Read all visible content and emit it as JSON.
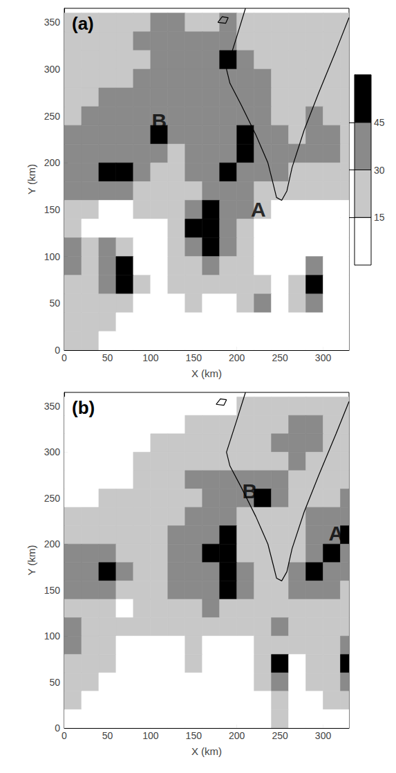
{
  "chart_data": [
    {
      "type": "heatmap",
      "panel_label": "(a)",
      "xlabel": "X (km)",
      "ylabel": "Y (km)",
      "xlim": [
        0,
        330
      ],
      "ylim": [
        0,
        365
      ],
      "xticks": [
        0,
        50,
        100,
        150,
        200,
        250,
        300
      ],
      "yticks": [
        0,
        50,
        100,
        150,
        200,
        250,
        300,
        350
      ],
      "cells": {
        "x": [
          0,
          20,
          40,
          60,
          80,
          100,
          120,
          140,
          160,
          180,
          200,
          220,
          240,
          260,
          280,
          300,
          320
        ],
        "y": [
          340,
          320,
          300,
          280,
          260,
          240,
          220,
          200,
          180,
          160,
          140,
          120,
          100,
          80,
          60,
          40,
          20,
          0
        ],
        "size": 20,
        "dbz": [
          [
            15,
            15,
            15,
            15,
            15,
            30,
            30,
            15,
            15,
            30,
            15,
            15,
            15,
            15,
            15,
            15,
            15
          ],
          [
            15,
            15,
            15,
            15,
            30,
            30,
            30,
            30,
            30,
            30,
            15,
            15,
            15,
            15,
            15,
            15,
            15
          ],
          [
            15,
            15,
            15,
            15,
            15,
            30,
            30,
            30,
            30,
            45,
            30,
            15,
            15,
            15,
            15,
            15,
            15
          ],
          [
            15,
            15,
            15,
            15,
            30,
            30,
            30,
            30,
            30,
            30,
            30,
            30,
            15,
            15,
            15,
            15,
            15
          ],
          [
            15,
            15,
            30,
            30,
            30,
            30,
            30,
            30,
            30,
            30,
            30,
            30,
            15,
            15,
            15,
            15,
            15
          ],
          [
            15,
            30,
            30,
            30,
            30,
            30,
            30,
            30,
            30,
            30,
            30,
            30,
            15,
            15,
            30,
            15,
            15
          ],
          [
            30,
            30,
            30,
            30,
            30,
            45,
            30,
            30,
            30,
            30,
            45,
            30,
            30,
            15,
            30,
            30,
            15
          ],
          [
            30,
            30,
            30,
            30,
            30,
            30,
            15,
            30,
            30,
            30,
            45,
            30,
            30,
            30,
            30,
            30,
            15
          ],
          [
            30,
            30,
            45,
            45,
            30,
            15,
            15,
            30,
            30,
            45,
            30,
            30,
            30,
            15,
            15,
            15,
            15
          ],
          [
            30,
            30,
            30,
            30,
            15,
            15,
            15,
            15,
            30,
            30,
            30,
            15,
            15,
            15,
            15,
            15,
            15
          ],
          [
            15,
            15,
            0,
            0,
            15,
            15,
            15,
            30,
            45,
            30,
            30,
            15,
            0,
            0,
            0,
            0,
            0
          ],
          [
            15,
            0,
            0,
            0,
            0,
            0,
            15,
            45,
            45,
            30,
            15,
            0,
            0,
            0,
            0,
            0,
            0
          ],
          [
            30,
            15,
            30,
            15,
            0,
            0,
            15,
            30,
            45,
            30,
            15,
            0,
            0,
            0,
            0,
            0,
            0
          ],
          [
            30,
            15,
            30,
            45,
            0,
            0,
            15,
            15,
            30,
            15,
            15,
            0,
            0,
            0,
            30,
            0,
            0
          ],
          [
            15,
            15,
            30,
            45,
            15,
            0,
            15,
            15,
            15,
            15,
            15,
            15,
            0,
            15,
            45,
            0,
            0
          ],
          [
            15,
            15,
            15,
            15,
            0,
            0,
            0,
            15,
            0,
            0,
            15,
            30,
            0,
            15,
            30,
            0,
            0
          ],
          [
            15,
            15,
            15,
            0,
            0,
            0,
            0,
            0,
            0,
            0,
            0,
            0,
            0,
            0,
            0,
            0,
            0
          ],
          [
            15,
            15,
            0,
            0,
            0,
            0,
            0,
            0,
            0,
            0,
            0,
            0,
            0,
            0,
            0,
            0,
            0
          ]
        ]
      },
      "coastline": [
        [
          [
            210,
            365
          ],
          [
            200,
            335
          ],
          [
            188,
            300
          ],
          [
            192,
            285
          ],
          [
            205,
            262
          ],
          [
            222,
            230
          ],
          [
            236,
            200
          ],
          [
            242,
            178
          ],
          [
            246,
            163
          ],
          [
            252,
            160
          ],
          [
            258,
            170
          ],
          [
            264,
            195
          ],
          [
            278,
            235
          ],
          [
            295,
            275
          ],
          [
            315,
            320
          ],
          [
            330,
            355
          ]
        ],
        [
          [
            178,
            350
          ],
          [
            183,
            356
          ],
          [
            190,
            355
          ],
          [
            187,
            349
          ],
          [
            178,
            350
          ]
        ]
      ],
      "annotations": [
        {
          "text": "A",
          "x": 225,
          "y": 150
        },
        {
          "text": "B",
          "x": 110,
          "y": 245
        }
      ],
      "colorbar": {
        "range": [
          0,
          60
        ],
        "ticks": [
          15,
          30,
          45
        ],
        "levels": [
          0,
          15,
          30,
          45
        ],
        "colors": [
          "#ffffff",
          "#c8c8c8",
          "#8a8a8a",
          "#000000"
        ]
      }
    },
    {
      "type": "heatmap",
      "panel_label": "(b)",
      "xlabel": "X (km)",
      "ylabel": "Y (km)",
      "xlim": [
        0,
        330
      ],
      "ylim": [
        0,
        365
      ],
      "xticks": [
        0,
        50,
        100,
        150,
        200,
        250,
        300
      ],
      "yticks": [
        0,
        50,
        100,
        150,
        200,
        250,
        300,
        350
      ],
      "cells": {
        "x": [
          0,
          20,
          40,
          60,
          80,
          100,
          120,
          140,
          160,
          180,
          200,
          220,
          240,
          260,
          280,
          300,
          320
        ],
        "y": [
          340,
          320,
          300,
          280,
          260,
          240,
          220,
          200,
          180,
          160,
          140,
          120,
          100,
          80,
          60,
          40,
          20,
          0
        ],
        "size": 20,
        "dbz": [
          [
            0,
            0,
            0,
            0,
            0,
            0,
            0,
            0,
            0,
            0,
            15,
            15,
            15,
            15,
            15,
            15,
            15
          ],
          [
            0,
            0,
            0,
            0,
            0,
            0,
            0,
            15,
            15,
            15,
            15,
            15,
            15,
            30,
            30,
            15,
            15
          ],
          [
            0,
            0,
            0,
            0,
            0,
            15,
            15,
            15,
            15,
            15,
            15,
            15,
            30,
            30,
            30,
            15,
            15
          ],
          [
            0,
            0,
            0,
            0,
            15,
            15,
            15,
            15,
            15,
            15,
            15,
            15,
            15,
            30,
            15,
            15,
            15
          ],
          [
            0,
            0,
            0,
            0,
            15,
            15,
            15,
            30,
            30,
            30,
            30,
            30,
            30,
            15,
            15,
            15,
            15
          ],
          [
            0,
            0,
            15,
            15,
            15,
            15,
            15,
            15,
            30,
            30,
            30,
            45,
            30,
            15,
            15,
            15,
            30
          ],
          [
            15,
            15,
            15,
            15,
            15,
            15,
            15,
            30,
            30,
            30,
            15,
            15,
            15,
            15,
            30,
            30,
            30
          ],
          [
            15,
            15,
            15,
            15,
            15,
            15,
            30,
            30,
            30,
            45,
            15,
            15,
            15,
            15,
            30,
            30,
            45
          ],
          [
            30,
            30,
            30,
            15,
            15,
            15,
            30,
            30,
            45,
            45,
            15,
            15,
            15,
            15,
            30,
            45,
            30
          ],
          [
            30,
            30,
            45,
            30,
            15,
            15,
            30,
            30,
            30,
            45,
            30,
            15,
            15,
            30,
            45,
            30,
            30
          ],
          [
            30,
            30,
            30,
            15,
            15,
            15,
            30,
            30,
            30,
            45,
            30,
            15,
            15,
            30,
            30,
            30,
            15
          ],
          [
            15,
            15,
            15,
            0,
            15,
            15,
            15,
            15,
            30,
            15,
            15,
            15,
            15,
            15,
            15,
            15,
            15
          ],
          [
            30,
            15,
            15,
            15,
            15,
            15,
            15,
            15,
            15,
            15,
            15,
            15,
            30,
            15,
            15,
            15,
            15
          ],
          [
            30,
            15,
            15,
            0,
            0,
            0,
            0,
            15,
            0,
            0,
            0,
            15,
            15,
            15,
            15,
            15,
            30
          ],
          [
            15,
            15,
            15,
            0,
            0,
            0,
            0,
            15,
            0,
            0,
            0,
            15,
            45,
            0,
            15,
            15,
            45
          ],
          [
            15,
            15,
            0,
            0,
            0,
            0,
            0,
            0,
            0,
            0,
            0,
            15,
            30,
            0,
            15,
            15,
            30
          ],
          [
            15,
            0,
            0,
            0,
            0,
            0,
            0,
            0,
            0,
            0,
            0,
            0,
            15,
            0,
            0,
            15,
            15
          ],
          [
            0,
            0,
            0,
            0,
            0,
            0,
            0,
            0,
            0,
            0,
            0,
            0,
            15,
            0,
            0,
            0,
            0
          ]
        ]
      },
      "coastline": [
        [
          [
            210,
            365
          ],
          [
            200,
            335
          ],
          [
            188,
            300
          ],
          [
            192,
            285
          ],
          [
            205,
            262
          ],
          [
            222,
            230
          ],
          [
            236,
            200
          ],
          [
            242,
            178
          ],
          [
            246,
            163
          ],
          [
            252,
            160
          ],
          [
            258,
            170
          ],
          [
            264,
            195
          ],
          [
            278,
            235
          ],
          [
            295,
            275
          ],
          [
            315,
            320
          ],
          [
            330,
            355
          ]
        ],
        [
          [
            176,
            352
          ],
          [
            181,
            358
          ],
          [
            188,
            357
          ],
          [
            185,
            351
          ],
          [
            176,
            352
          ]
        ]
      ],
      "annotations": [
        {
          "text": "B",
          "x": 215,
          "y": 258
        },
        {
          "text": "A",
          "x": 315,
          "y": 212
        }
      ]
    }
  ]
}
